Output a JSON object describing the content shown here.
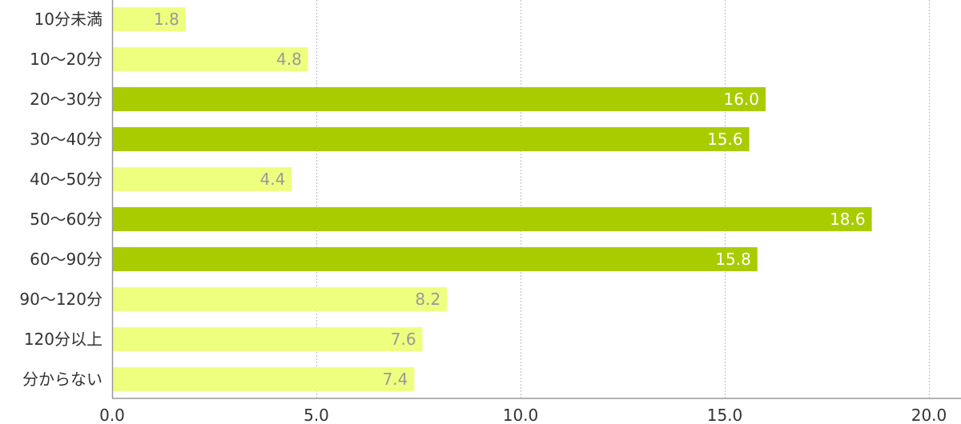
{
  "chart_data": {
    "type": "bar",
    "orientation": "horizontal",
    "categories": [
      "10分未満",
      "10〜20分",
      "20〜30分",
      "30〜40分",
      "40〜50分",
      "50〜60分",
      "60〜90分",
      "90〜120分",
      "120分以上",
      "分からない"
    ],
    "values": [
      1.8,
      4.8,
      16.0,
      15.6,
      4.4,
      18.6,
      15.8,
      8.2,
      7.6,
      7.4
    ],
    "value_labels": [
      "1.8",
      "4.8",
      "16.0",
      "15.6",
      "4.4",
      "18.6",
      "15.8",
      "8.2",
      "7.6",
      "7.4"
    ],
    "highlighted": [
      false,
      false,
      true,
      true,
      false,
      true,
      true,
      false,
      false,
      false
    ],
    "xlim": [
      0,
      20
    ],
    "ticks": [
      0,
      5,
      10,
      15,
      20
    ],
    "tick_labels": [
      "0.0",
      "5.0",
      "10.0",
      "15.0",
      "20.0"
    ],
    "grid": true,
    "legend": "none",
    "colors": {
      "bar_light": "#eeff80",
      "bar_dark": "#a8cc00",
      "label_on_light": "#999999",
      "label_on_dark": "#ffffff",
      "grid": "#bbbbbb",
      "axis": "#999999"
    }
  }
}
